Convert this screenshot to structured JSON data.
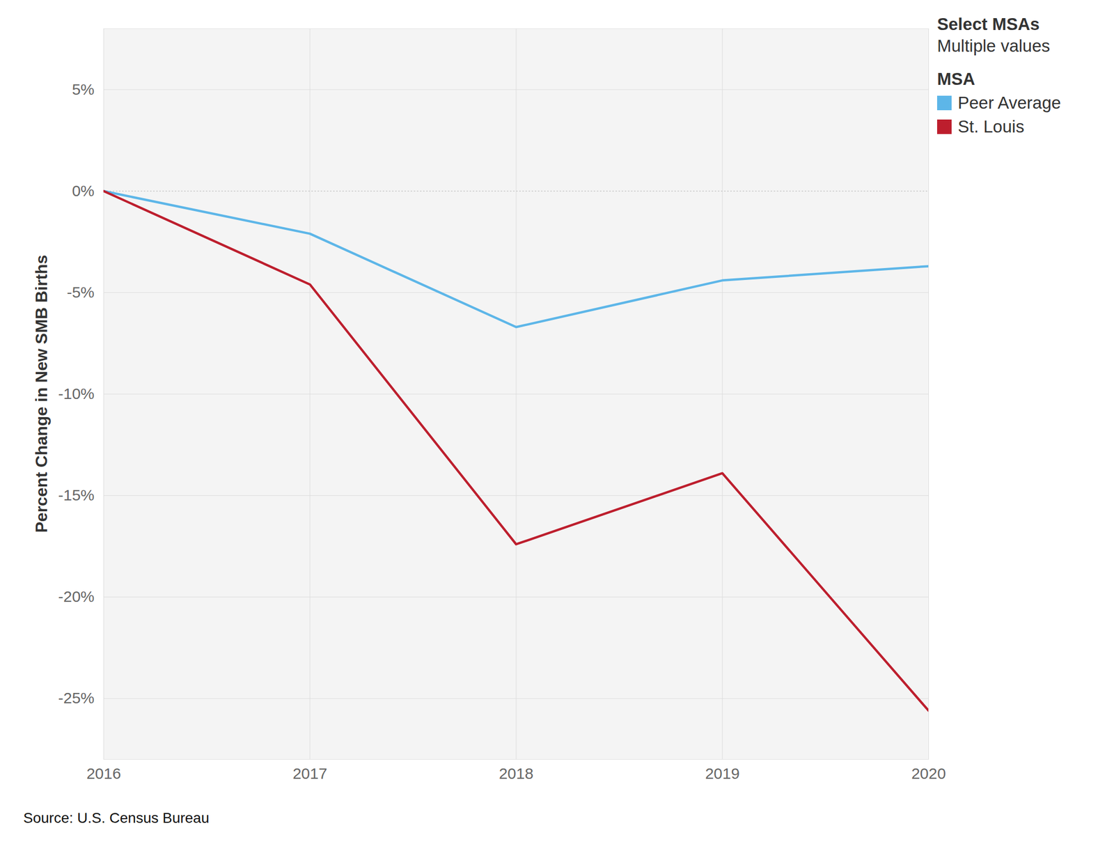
{
  "chart_data": {
    "type": "line",
    "y_label": "Percent Change in New SMB Births",
    "filter_label": "Select MSAs",
    "filter_value": "Multiple values",
    "legend_title": "MSA",
    "caption": "Source: U.S. Census Bureau",
    "x": [
      2016,
      2017,
      2018,
      2019,
      2020
    ],
    "series": [
      {
        "name": "Peer Average",
        "color": "#5db6e8",
        "values": [
          0,
          -2.1,
          -6.7,
          -4.4,
          -3.7
        ]
      },
      {
        "name": "St. Louis",
        "color": "#bd1e2d",
        "values": [
          0,
          -4.6,
          -17.4,
          -13.9,
          -25.6
        ]
      }
    ],
    "xlim": [
      2016,
      2020
    ],
    "xticks": [
      2016,
      2017,
      2018,
      2019,
      2020
    ],
    "ylim": [
      -28,
      8
    ],
    "yticks": [
      {
        "value": -25,
        "label": "-25%"
      },
      {
        "value": -20,
        "label": "-20%"
      },
      {
        "value": -15,
        "label": "-15%"
      },
      {
        "value": -10,
        "label": "-10%"
      },
      {
        "value": -5,
        "label": "-5%"
      },
      {
        "value": 0,
        "label": "0%"
      },
      {
        "value": 5,
        "label": "5%"
      }
    ],
    "grid": true,
    "legend": "top-right"
  }
}
